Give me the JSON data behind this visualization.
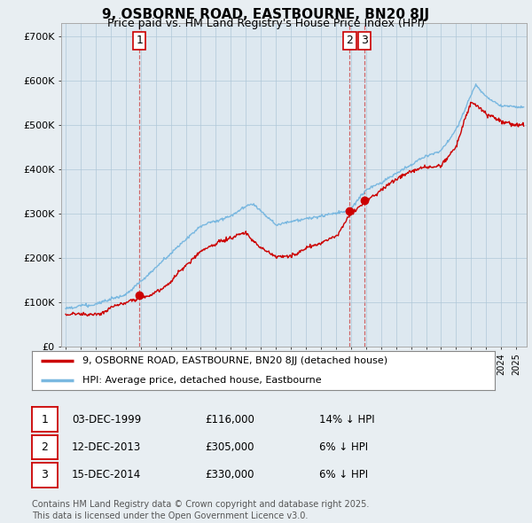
{
  "title": "9, OSBORNE ROAD, EASTBOURNE, BN20 8JJ",
  "subtitle": "Price paid vs. HM Land Registry's House Price Index (HPI)",
  "ylim": [
    0,
    730000
  ],
  "yticks": [
    0,
    100000,
    200000,
    300000,
    400000,
    500000,
    600000,
    700000
  ],
  "ytick_labels": [
    "£0",
    "£100K",
    "£200K",
    "£300K",
    "£400K",
    "£500K",
    "£600K",
    "£700K"
  ],
  "background_color": "#dde8f0",
  "plot_bg_color": "#dde8f0",
  "grid_color": "#b0c8d8",
  "sale_color": "#cc0000",
  "hpi_color": "#7ab8e0",
  "sale_dates": [
    "1999-12-03",
    "2013-12-12",
    "2014-12-15"
  ],
  "sale_prices": [
    116000,
    305000,
    330000
  ],
  "sale_labels": [
    "1",
    "2",
    "3"
  ],
  "legend_sale": "9, OSBORNE ROAD, EASTBOURNE, BN20 8JJ (detached house)",
  "legend_hpi": "HPI: Average price, detached house, Eastbourne",
  "table": [
    {
      "num": "1",
      "date": "03-DEC-1999",
      "price": "£116,000",
      "note": "14% ↓ HPI"
    },
    {
      "num": "2",
      "date": "12-DEC-2013",
      "price": "£305,000",
      "note": "6% ↓ HPI"
    },
    {
      "num": "3",
      "date": "15-DEC-2014",
      "price": "£330,000",
      "note": "6% ↓ HPI"
    }
  ],
  "footer": "Contains HM Land Registry data © Crown copyright and database right 2025.\nThis data is licensed under the Open Government Licence v3.0.",
  "vline_color": "#cc0000"
}
